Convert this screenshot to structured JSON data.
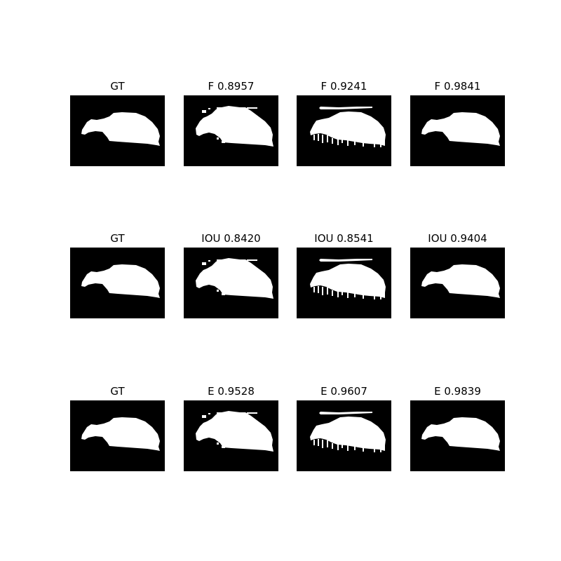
{
  "figure": {
    "rows": [
      {
        "panels": [
          {
            "title": "GT",
            "mask": "gt"
          },
          {
            "title": "F 0.8957",
            "mask": "pred_a"
          },
          {
            "title": "F 0.9241",
            "mask": "pred_b"
          },
          {
            "title": "F 0.9841",
            "mask": "pred_c"
          }
        ]
      },
      {
        "panels": [
          {
            "title": "GT",
            "mask": "gt"
          },
          {
            "title": "IOU 0.8420",
            "mask": "pred_a"
          },
          {
            "title": "IOU 0.8541",
            "mask": "pred_b"
          },
          {
            "title": "IOU 0.9404",
            "mask": "pred_c"
          }
        ]
      },
      {
        "panels": [
          {
            "title": "GT",
            "mask": "gt"
          },
          {
            "title": "E 0.9528",
            "mask": "pred_a"
          },
          {
            "title": "E 0.9607",
            "mask": "pred_b"
          },
          {
            "title": "E 0.9839",
            "mask": "pred_c"
          }
        ]
      }
    ],
    "colors": {
      "background": "#000000",
      "foreground": "#ffffff"
    }
  }
}
